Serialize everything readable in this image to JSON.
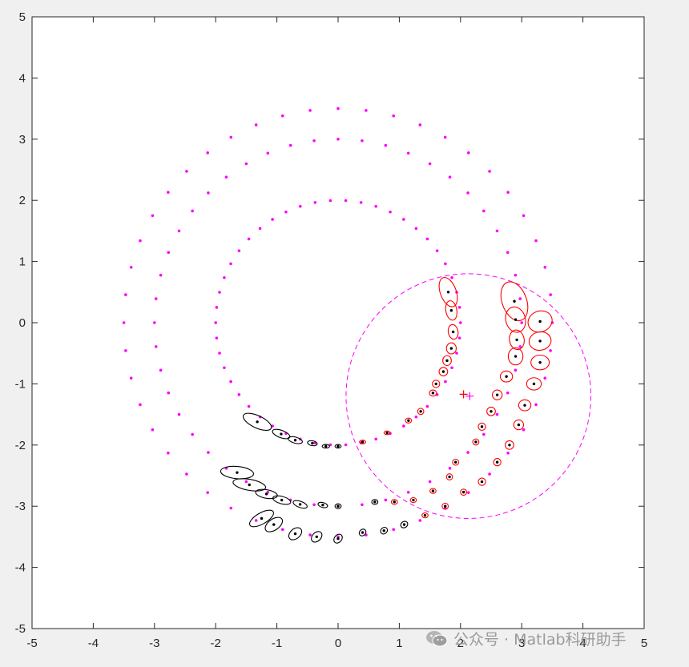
{
  "chart_data": {
    "type": "scatter",
    "title": "",
    "xlabel": "",
    "ylabel": "",
    "xlim": [
      -5,
      5
    ],
    "ylim": [
      -5,
      5
    ],
    "grid": false,
    "x_ticks": [
      "-5",
      "-4",
      "-3",
      "-2",
      "-1",
      "0",
      "1",
      "2",
      "3",
      "4",
      "5"
    ],
    "y_ticks": [
      "-5",
      "-4",
      "-3",
      "-2",
      "-1",
      "0",
      "1",
      "2",
      "3",
      "4",
      "5"
    ],
    "colors": {
      "magenta": "#ff00ff",
      "red": "#ff0000",
      "black": "#000000",
      "axes_background": "#ffffff",
      "figure_background": "#f0f0f0"
    },
    "circles": [
      {
        "name": "",
        "radius": 2.0,
        "center": [
          0,
          0
        ],
        "points": 50,
        "color": "#ff00ff"
      },
      {
        "name": "",
        "radius": 3.0,
        "center": [
          0,
          0
        ],
        "points": 48,
        "color": "#ff00ff"
      },
      {
        "name": "",
        "radius": 3.5,
        "center": [
          0,
          0
        ],
        "points": 48,
        "color": "#ff00ff"
      }
    ],
    "sensor_region": {
      "center": [
        2.13,
        -1.2
      ],
      "radius": 2.0,
      "style": "dashed",
      "color": "#ff00ff"
    },
    "sensor_markers": [
      {
        "symbol": "+",
        "x": 2.05,
        "y": -1.17,
        "color": "#ff0000"
      },
      {
        "symbol": "+",
        "x": 2.15,
        "y": -1.2,
        "color": "#ff00ff"
      }
    ],
    "tracks": [
      {
        "color": "#ff0000",
        "points": [
          [
            1.8,
            0.5,
            0.13,
            0.25,
            20
          ],
          [
            1.85,
            0.2,
            0.09,
            0.16,
            10
          ],
          [
            1.88,
            -0.15,
            0.08,
            0.12,
            10
          ],
          [
            1.85,
            -0.42,
            0.08,
            0.09,
            0
          ],
          [
            1.78,
            -0.62,
            0.07,
            0.08,
            0
          ],
          [
            1.72,
            -0.8,
            0.07,
            0.07,
            0
          ],
          [
            1.6,
            -1.0,
            0.06,
            0.06,
            0
          ],
          [
            1.55,
            -1.15,
            0.06,
            0.05,
            0
          ],
          [
            1.35,
            -1.45,
            0.05,
            0.05,
            0
          ],
          [
            1.15,
            -1.6,
            0.05,
            0.04,
            0
          ],
          [
            0.8,
            -1.8,
            0.05,
            0.03,
            0
          ],
          [
            0.4,
            -1.95,
            0.05,
            0.03,
            0
          ]
        ]
      },
      {
        "color": "#000000",
        "points": [
          [
            -1.32,
            -1.62,
            0.25,
            0.1,
            -25
          ],
          [
            -0.93,
            -1.82,
            0.15,
            0.06,
            -20
          ],
          [
            -0.7,
            -1.92,
            0.12,
            0.05,
            -15
          ],
          [
            -0.42,
            -1.97,
            0.08,
            0.04,
            -10
          ],
          [
            -0.2,
            -2.02,
            0.06,
            0.03,
            0
          ],
          [
            0.0,
            -2.02,
            0.05,
            0.03,
            0
          ]
        ]
      },
      {
        "color": "#ff0000",
        "points": [
          [
            2.88,
            0.35,
            0.2,
            0.33,
            20
          ],
          [
            2.9,
            0.05,
            0.16,
            0.21,
            15
          ],
          [
            2.92,
            -0.28,
            0.12,
            0.16,
            10
          ],
          [
            2.9,
            -0.55,
            0.12,
            0.14,
            0
          ],
          [
            2.75,
            -0.88,
            0.1,
            0.09,
            0
          ],
          [
            2.6,
            -1.18,
            0.08,
            0.08,
            0
          ],
          [
            2.5,
            -1.45,
            0.07,
            0.07,
            0
          ],
          [
            2.35,
            -1.7,
            0.06,
            0.06,
            0
          ],
          [
            2.25,
            -1.95,
            0.05,
            0.05,
            0
          ],
          [
            1.92,
            -2.28,
            0.05,
            0.05,
            0
          ],
          [
            1.82,
            -2.52,
            0.05,
            0.05,
            0
          ],
          [
            1.55,
            -2.75,
            0.05,
            0.04,
            0
          ],
          [
            1.23,
            -2.9,
            0.05,
            0.04,
            0
          ],
          [
            0.92,
            -2.93,
            0.05,
            0.04,
            0
          ]
        ]
      },
      {
        "color": "#000000",
        "points": [
          [
            -1.65,
            -2.45,
            0.27,
            0.1,
            -5
          ],
          [
            -1.45,
            -2.65,
            0.27,
            0.09,
            -10
          ],
          [
            -1.17,
            -2.8,
            0.18,
            0.07,
            -10
          ],
          [
            -0.92,
            -2.9,
            0.15,
            0.06,
            -15
          ],
          [
            -0.62,
            -2.97,
            0.12,
            0.05,
            -20
          ],
          [
            -0.25,
            -2.98,
            0.08,
            0.04,
            -15
          ],
          [
            0.0,
            -3.0,
            0.05,
            0.04,
            0
          ],
          [
            0.6,
            -2.93,
            0.05,
            0.04,
            0
          ]
        ]
      },
      {
        "color": "#ff0000",
        "points": [
          [
            3.3,
            0.02,
            0.2,
            0.17,
            20
          ],
          [
            3.3,
            -0.3,
            0.18,
            0.15,
            10
          ],
          [
            3.3,
            -0.65,
            0.15,
            0.12,
            0
          ],
          [
            3.2,
            -1.0,
            0.12,
            0.1,
            0
          ],
          [
            3.05,
            -1.35,
            0.1,
            0.09,
            0
          ],
          [
            2.95,
            -1.67,
            0.08,
            0.08,
            0
          ],
          [
            2.8,
            -2.0,
            0.07,
            0.07,
            0
          ],
          [
            2.6,
            -2.28,
            0.06,
            0.06,
            0
          ],
          [
            2.35,
            -2.6,
            0.06,
            0.06,
            0
          ],
          [
            2.05,
            -2.77,
            0.05,
            0.05,
            0
          ],
          [
            1.75,
            -3.0,
            0.05,
            0.05,
            0
          ],
          [
            1.42,
            -3.15,
            0.05,
            0.04,
            0
          ]
        ]
      },
      {
        "color": "#000000",
        "points": [
          [
            -1.25,
            -3.2,
            0.22,
            0.09,
            30
          ],
          [
            -1.05,
            -3.3,
            0.16,
            0.09,
            35
          ],
          [
            -0.7,
            -3.45,
            0.12,
            0.08,
            40
          ],
          [
            -0.35,
            -3.5,
            0.1,
            0.07,
            45
          ],
          [
            0.0,
            -3.53,
            0.08,
            0.06,
            50
          ],
          [
            0.4,
            -3.43,
            0.06,
            0.05,
            45
          ],
          [
            0.75,
            -3.4,
            0.06,
            0.05,
            40
          ],
          [
            1.08,
            -3.3,
            0.06,
            0.05,
            35
          ]
        ]
      }
    ]
  },
  "watermark": {
    "icon": "wechat-icon",
    "text": "公众号 · Matlab科研助手"
  }
}
